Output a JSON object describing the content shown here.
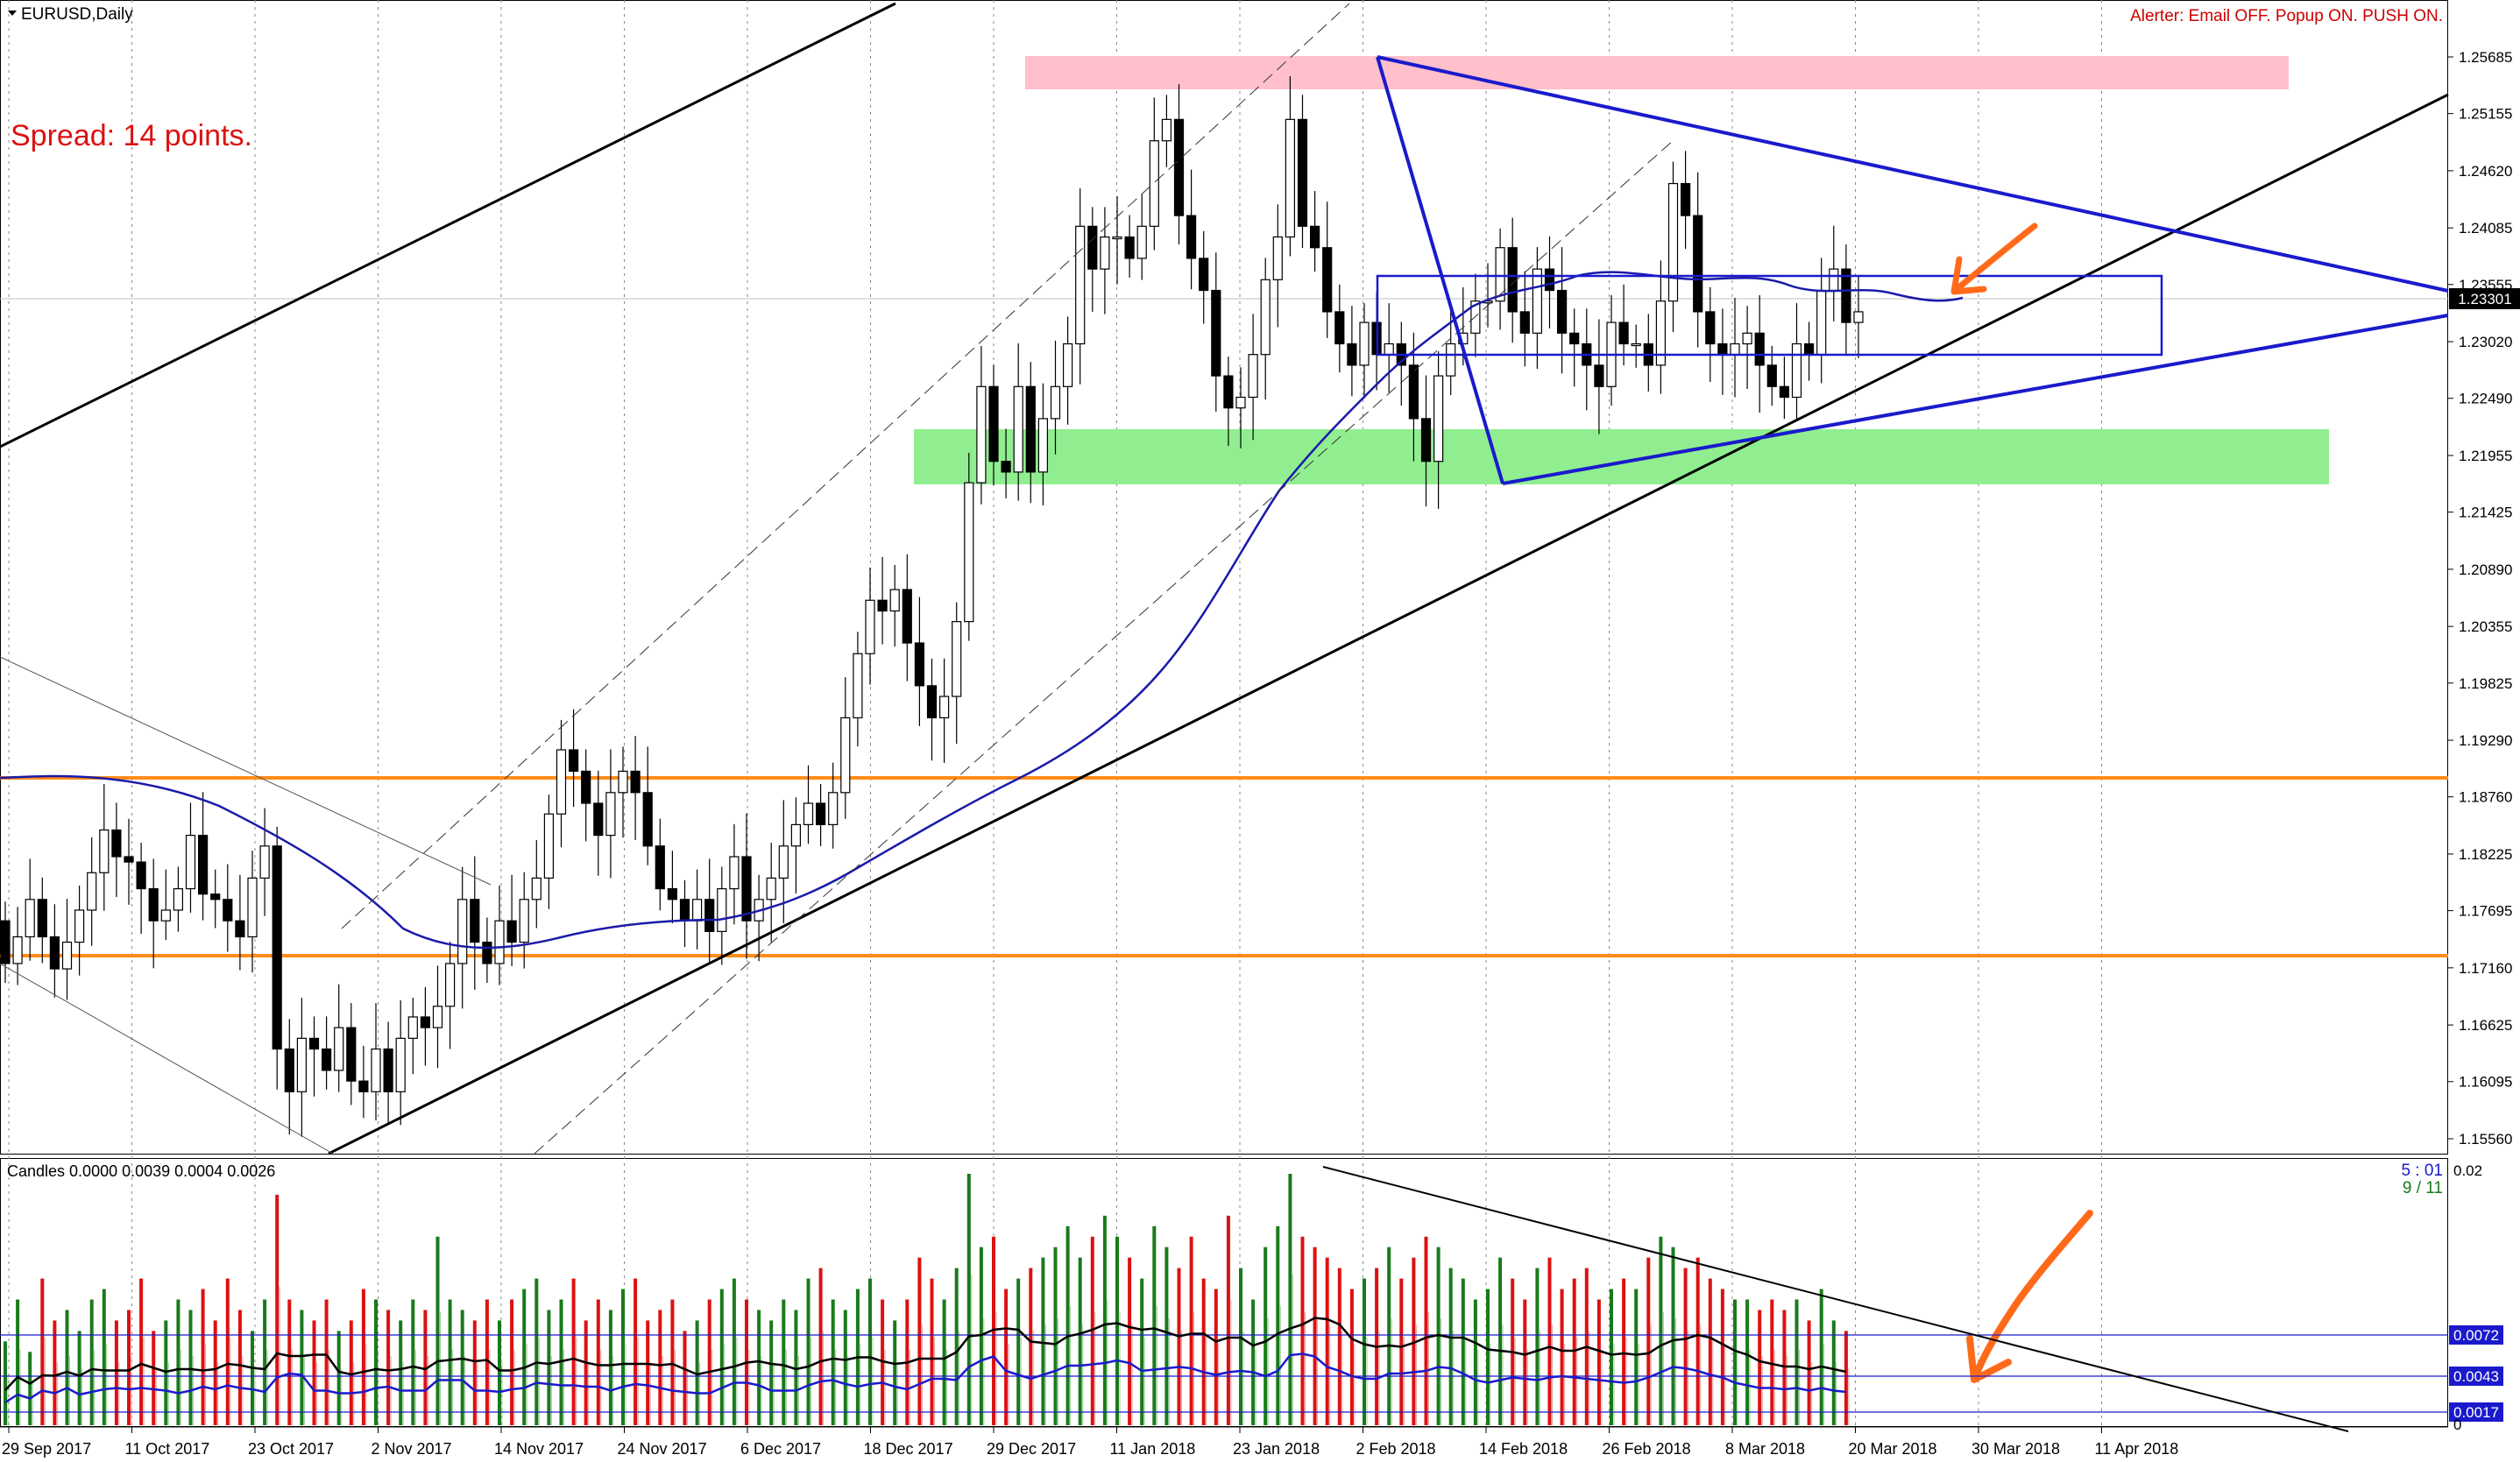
{
  "header": {
    "symbol": "EURUSD,Daily",
    "alerter": "Alerter:  Email OFF.  Popup ON.  PUSH ON.",
    "spread": "Spread: 14 points."
  },
  "colors": {
    "accent_text": "#cc0000",
    "pattern_lines": "#1a1acc",
    "moving_average": "#1a1aaa",
    "resistance_zone": "#ffc0cb",
    "support_zone": "#90ee90",
    "horizontal_levels": "#ff8c1a",
    "annotation_arrows": "#ff6a1a",
    "bull_volume_bar": "#1a7a1a",
    "bear_volume_bar": "#dd1111"
  },
  "chart_data": [
    {
      "type": "candlestick",
      "symbol": "EURUSD",
      "timeframe": "Daily",
      "title": "EURUSD,Daily",
      "y_ticks": [
        "1.25685",
        "1.25155",
        "1.24620",
        "1.24085",
        "1.23555",
        "1.23020",
        "1.22490",
        "1.21955",
        "1.21425",
        "1.20890",
        "1.20355",
        "1.19825",
        "1.19290",
        "1.18760",
        "1.18225",
        "1.17695",
        "1.17160",
        "1.16625",
        "1.16095",
        "1.15560"
      ],
      "ylim": [
        1.1525,
        1.259
      ],
      "x_ticks": [
        "29 Sep 2017",
        "11 Oct 2017",
        "23 Oct 2017",
        "2 Nov 2017",
        "14 Nov 2017",
        "24 Nov 2017",
        "6 Dec 2017",
        "18 Dec 2017",
        "29 Dec 2017",
        "11 Jan 2018",
        "23 Jan 2018",
        "2 Feb 2018",
        "14 Feb 2018",
        "26 Feb 2018",
        "8 Mar 2018",
        "20 Mar 2018",
        "30 Mar 2018",
        "11 Apr 2018"
      ],
      "current_price": "1.23301",
      "close": [
        1.172,
        1.1745,
        1.178,
        1.1745,
        1.1715,
        1.174,
        1.177,
        1.1805,
        1.1845,
        1.182,
        1.1815,
        1.179,
        1.176,
        1.177,
        1.179,
        1.184,
        1.1785,
        1.178,
        1.176,
        1.1745,
        1.18,
        1.183,
        1.164,
        1.16,
        1.165,
        1.164,
        1.162,
        1.166,
        1.161,
        1.16,
        1.164,
        1.16,
        1.165,
        1.167,
        1.166,
        1.168,
        1.172,
        1.178,
        1.174,
        1.172,
        1.176,
        1.174,
        1.178,
        1.18,
        1.186,
        1.192,
        1.19,
        1.187,
        1.184,
        1.188,
        1.19,
        1.188,
        1.183,
        1.179,
        1.178,
        1.176,
        1.178,
        1.175,
        1.179,
        1.182,
        1.176,
        1.178,
        1.18,
        1.183,
        1.185,
        1.187,
        1.185,
        1.188,
        1.195,
        1.201,
        1.206,
        1.205,
        1.207,
        1.202,
        1.198,
        1.195,
        1.197,
        1.204,
        1.217,
        1.226,
        1.219,
        1.218,
        1.226,
        1.218,
        1.223,
        1.226,
        1.23,
        1.241,
        1.237,
        1.24,
        1.24,
        1.238,
        1.241,
        1.249,
        1.251,
        1.242,
        1.238,
        1.235,
        1.227,
        1.224,
        1.225,
        1.229,
        1.236,
        1.24,
        1.251,
        1.241,
        1.239,
        1.233,
        1.23,
        1.228,
        1.232,
        1.229,
        1.23,
        1.228,
        1.223,
        1.219,
        1.227,
        1.23,
        1.231,
        1.234,
        1.234,
        1.239,
        1.233,
        1.231,
        1.237,
        1.235,
        1.231,
        1.23,
        1.228,
        1.226,
        1.232,
        1.23,
        1.23,
        1.228,
        1.234,
        1.245,
        1.242,
        1.233,
        1.23,
        1.229,
        1.23,
        1.231,
        1.228,
        1.226,
        1.225,
        1.23,
        1.229,
        1.235,
        1.237,
        1.232,
        1.233
      ]
    },
    {
      "type": "bar",
      "title": "Candles 0.0000 0.0039 0.0004 0.0026",
      "corner_labels": [
        "5 : 01",
        "9 / 11"
      ],
      "top_value": "0.02",
      "zero_label": "0",
      "levels": [
        "0.0072",
        "0.0043",
        "0.0017"
      ],
      "ylim": [
        0,
        0.012
      ],
      "values": [
        0.004,
        0.006,
        0.0035,
        0.007,
        0.005,
        0.0055,
        0.0045,
        0.006,
        0.0065,
        0.005,
        0.0055,
        0.007,
        0.0045,
        0.005,
        0.006,
        0.0055,
        0.0065,
        0.005,
        0.007,
        0.0055,
        0.0045,
        0.006,
        0.011,
        0.006,
        0.0055,
        0.005,
        0.006,
        0.0045,
        0.005,
        0.0065,
        0.006,
        0.0055,
        0.005,
        0.006,
        0.0055,
        0.009,
        0.006,
        0.0055,
        0.005,
        0.006,
        0.005,
        0.006,
        0.0065,
        0.007,
        0.0055,
        0.006,
        0.007,
        0.005,
        0.006,
        0.0055,
        0.0065,
        0.007,
        0.005,
        0.0055,
        0.006,
        0.0045,
        0.005,
        0.006,
        0.0065,
        0.007,
        0.006,
        0.0055,
        0.005,
        0.006,
        0.0055,
        0.007,
        0.0075,
        0.006,
        0.0055,
        0.0065,
        0.007,
        0.006,
        0.005,
        0.006,
        0.008,
        0.007,
        0.006,
        0.0075,
        0.012,
        0.0085,
        0.009,
        0.0065,
        0.007,
        0.0075,
        0.008,
        0.0085,
        0.0095,
        0.008,
        0.009,
        0.01,
        0.009,
        0.008,
        0.007,
        0.0095,
        0.0085,
        0.0075,
        0.009,
        0.007,
        0.0065,
        0.01,
        0.0075,
        0.006,
        0.0085,
        0.0095,
        0.012,
        0.009,
        0.0085,
        0.008,
        0.0075,
        0.0065,
        0.007,
        0.0075,
        0.0085,
        0.007,
        0.008,
        0.009,
        0.0085,
        0.0075,
        0.007,
        0.006,
        0.0065,
        0.008,
        0.007,
        0.006,
        0.0075,
        0.008,
        0.0065,
        0.007,
        0.0075,
        0.006,
        0.0065,
        0.007,
        0.0065,
        0.008,
        0.009,
        0.0085,
        0.0075,
        0.008,
        0.007,
        0.0065,
        0.006,
        0.006,
        0.0055,
        0.006,
        0.0055,
        0.006,
        0.005,
        0.0065,
        0.005,
        0.0045
      ]
    }
  ]
}
